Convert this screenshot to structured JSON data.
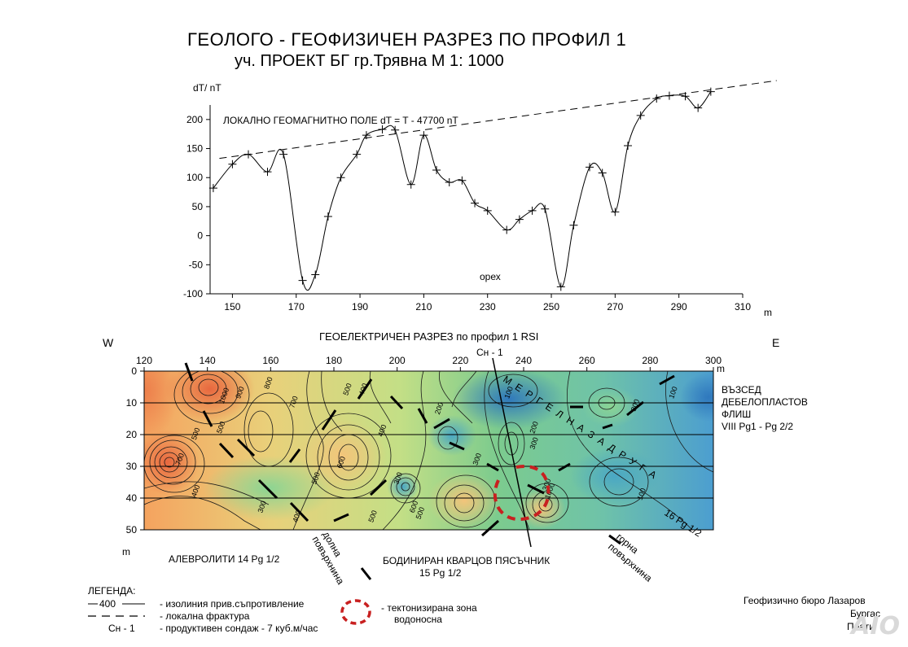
{
  "title_line1": "ГЕОЛОГО - ГЕОФИЗИЧЕН РАЗРЕЗ  ПО ПРОФИЛ  1",
  "title_line2": "уч. ПРОЕКТ БГ    гр.Трявна  М 1: 1000",
  "chart_data": [
    {
      "type": "line",
      "title": "ЛОКАЛНО  ГЕОМАГНИТНО ПОЛЕ  dT = T - 47700  nT",
      "ylabel": "dT/ nT",
      "xlabel": "m",
      "xlim": [
        143,
        310
      ],
      "ylim": [
        -100,
        225
      ],
      "xticks": [
        150,
        170,
        190,
        210,
        230,
        250,
        270,
        290,
        310
      ],
      "yticks": [
        -100,
        -50,
        0,
        50,
        100,
        150,
        200
      ],
      "annotation": "орех",
      "series": [
        {
          "x": [
            144,
            150,
            155,
            161,
            166,
            172,
            176,
            180,
            184,
            189,
            192,
            197,
            201,
            206,
            210,
            214,
            218,
            222,
            226,
            230,
            236,
            240,
            244,
            248,
            253,
            257,
            262,
            266,
            270,
            274,
            278,
            283,
            287,
            292,
            296,
            300
          ],
          "values": [
            82,
            123,
            140,
            110,
            140,
            -77,
            -67,
            33,
            100,
            140,
            173,
            183,
            182,
            88,
            173,
            113,
            92,
            95,
            56,
            43,
            10,
            28,
            43,
            46,
            -88,
            18,
            118,
            108,
            41,
            155,
            207,
            236,
            241,
            240,
            220,
            248
          ]
        },
        {
          "name": "trend",
          "x": [
            150,
            313
          ],
          "values": [
            133,
            267
          ]
        }
      ]
    },
    {
      "type": "heatmap",
      "title": "ГЕОЕЛЕКТРИЧЕН РАЗРЕЗ по профил 1  RSI",
      "xlim": [
        120,
        300
      ],
      "ylim": [
        0,
        50
      ],
      "xticks": [
        120,
        140,
        160,
        180,
        200,
        220,
        240,
        260,
        280,
        300
      ],
      "yticks": [
        0,
        10,
        20,
        30,
        40,
        50
      ],
      "xlabel": "m",
      "ylabel": "m",
      "contour_labels": [
        {
          "x": 132,
          "y": 28,
          "text": "700"
        },
        {
          "x": 146,
          "y": 8,
          "text": "1000"
        },
        {
          "x": 151,
          "y": 7,
          "text": "900"
        },
        {
          "x": 160,
          "y": 4,
          "text": "800"
        },
        {
          "x": 168,
          "y": 10,
          "text": "700"
        },
        {
          "x": 145,
          "y": 18,
          "text": "500"
        },
        {
          "x": 137,
          "y": 20,
          "text": "500"
        },
        {
          "x": 137,
          "y": 38,
          "text": "400"
        },
        {
          "x": 158,
          "y": 43,
          "text": "300"
        },
        {
          "x": 169,
          "y": 46,
          "text": "400"
        },
        {
          "x": 183,
          "y": 29,
          "text": "600"
        },
        {
          "x": 175,
          "y": 34,
          "text": "500"
        },
        {
          "x": 196,
          "y": 19,
          "text": "400"
        },
        {
          "x": 185,
          "y": 6,
          "text": "500"
        },
        {
          "x": 190,
          "y": 6,
          "text": "400"
        },
        {
          "x": 201,
          "y": 34,
          "text": "300"
        },
        {
          "x": 214,
          "y": 12,
          "text": "200"
        },
        {
          "x": 226,
          "y": 28,
          "text": "300"
        },
        {
          "x": 206,
          "y": 43,
          "text": "600"
        },
        {
          "x": 208,
          "y": 45,
          "text": "500"
        },
        {
          "x": 193,
          "y": 46,
          "text": "500"
        },
        {
          "x": 236,
          "y": 7,
          "text": "100"
        },
        {
          "x": 244,
          "y": 18,
          "text": "200"
        },
        {
          "x": 244,
          "y": 23,
          "text": "300"
        },
        {
          "x": 248,
          "y": 36,
          "text": "300"
        },
        {
          "x": 249,
          "y": 38,
          "text": "1000"
        },
        {
          "x": 276,
          "y": 11,
          "text": "300"
        },
        {
          "x": 288,
          "y": 7,
          "text": "100"
        },
        {
          "x": 278,
          "y": 39,
          "text": "100"
        }
      ]
    }
  ],
  "section": {
    "label_w": "W",
    "label_e": "E",
    "well_label": "Сн - 1",
    "marl_label": "М Е Р Г Е Л Н А   З А Д Р У Г А",
    "marl_age": "16 Pg  1/2",
    "upper_right_1": "ВЪЗСЕД",
    "upper_right_2": "ДЕБЕЛОПЛАСТОВ",
    "upper_right_3": "ФЛИШ",
    "upper_right_4": "VIII Pg1 - Pg 2/2",
    "lower_left": "АЛЕВРОЛИТИ 14 Pg  1/2",
    "lower_surface_1": "долна",
    "lower_surface_2": "повърхнина",
    "sandstone_1": "БОДИНИРАН  КВАРЦОВ  ПЯСЪЧНИК",
    "sandstone_2": "15 Pg 1/2",
    "upper_surface_1": "горна",
    "upper_surface_2": "повърхнина"
  },
  "legend": {
    "title": "ЛЕГЕНДА:",
    "item1_symbol": "400",
    "item1_text": "- изолиния прив.съпротивление",
    "item2_text": "- локална  фрактура",
    "item3_symbol": "Сн - 1",
    "item3_text": "- продуктивен сондаж - 7 куб.м/час",
    "item4_text": "-  тектонизирана зона",
    "item4_text2": "водоносна"
  },
  "credits": {
    "line1": "Геофизично  бюро   Лазаров",
    "line2": "Бургас",
    "line3": "Прати"
  },
  "watermark": "AIO"
}
